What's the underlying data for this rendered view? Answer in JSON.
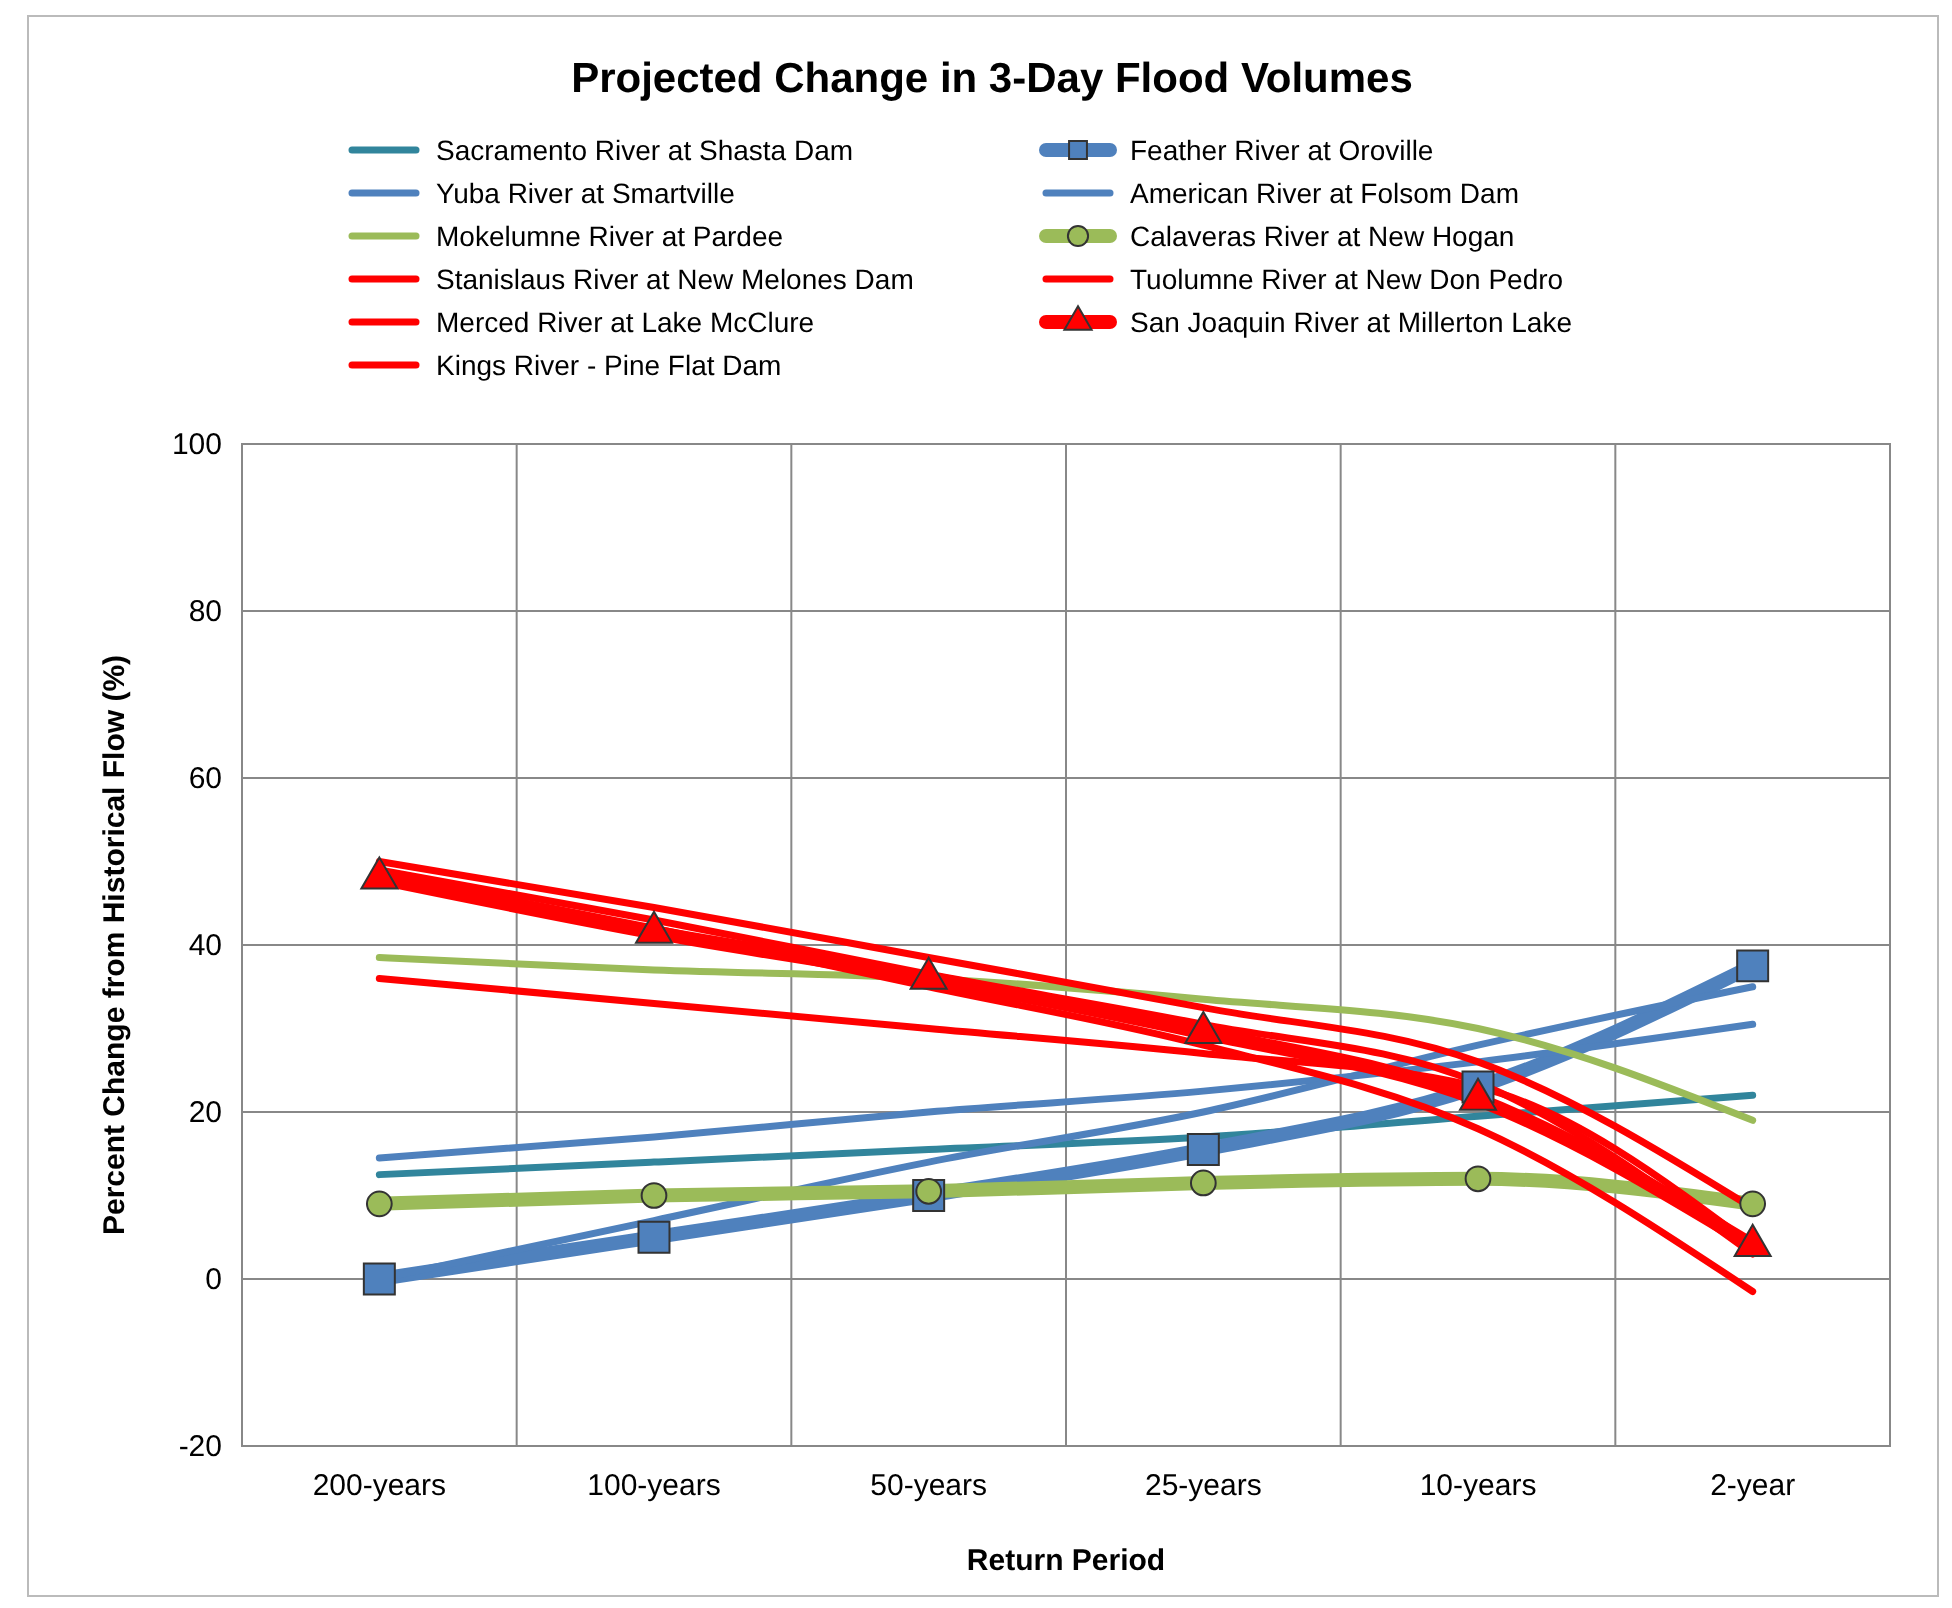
{
  "chart_data": {
    "type": "line",
    "title": "Projected Change in 3-Day Flood Volumes",
    "xlabel": "Return Period",
    "ylabel": "Percent Change from Historical Flow (%)",
    "categories": [
      "200-years",
      "100-years",
      "50-years",
      "25-years",
      "10-years",
      "2-year"
    ],
    "ylim": [
      -20,
      100
    ],
    "yticks": [
      -20,
      0,
      20,
      40,
      60,
      80,
      100
    ],
    "grid": true,
    "legend": "top",
    "series": [
      {
        "name": "Sacramento River at Shasta Dam",
        "color": "#31859c",
        "marker": "none",
        "values": [
          12.5,
          14,
          15.5,
          17,
          19.5,
          22
        ]
      },
      {
        "name": "Feather River at Oroville",
        "color": "#4f81bd",
        "marker": "square",
        "values": [
          0,
          5,
          10,
          15.5,
          23,
          37.5
        ]
      },
      {
        "name": "Yuba River at Smartville",
        "color": "#4f81bd",
        "marker": "none",
        "values": [
          14.5,
          17,
          20,
          22.5,
          26,
          30.5
        ]
      },
      {
        "name": "American River at Folsom Dam",
        "color": "#4f81bd",
        "marker": "none",
        "values": [
          0,
          7,
          14,
          20,
          28,
          35
        ]
      },
      {
        "name": "Mokelumne River at Pardee",
        "color": "#9bbb59",
        "marker": "none",
        "values": [
          38.5,
          37,
          36,
          33.5,
          30,
          19
        ]
      },
      {
        "name": "Calaveras River at New Hogan",
        "color": "#9bbb59",
        "marker": "circle",
        "values": [
          9,
          10,
          10.5,
          11.5,
          12,
          9
        ]
      },
      {
        "name": "Stanislaus River at New Melones Dam",
        "color": "#ff0000",
        "marker": "none",
        "values": [
          50,
          44.5,
          38.5,
          32.5,
          26,
          8.5
        ]
      },
      {
        "name": "Tuolumne River at New Don Pedro",
        "color": "#ff0000",
        "marker": "none",
        "values": [
          36,
          33,
          30,
          27,
          23,
          4
        ]
      },
      {
        "name": "Merced River at Lake McClure",
        "color": "#ff0000",
        "marker": "none",
        "values": [
          48.5,
          42,
          35,
          28,
          18,
          -1.5
        ]
      },
      {
        "name": "San Joaquin River at Millerton Lake",
        "color": "#ff0000",
        "marker": "triangle",
        "values": [
          48,
          41.5,
          36,
          29.5,
          21.5,
          4
        ]
      },
      {
        "name": "Kings River - Pine Flat Dam",
        "color": "#ff0000",
        "marker": "none",
        "values": [
          49,
          43,
          36.5,
          30.5,
          23.5,
          3
        ]
      }
    ]
  }
}
